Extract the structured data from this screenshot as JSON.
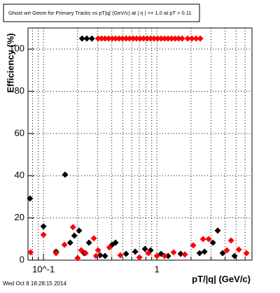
{
  "chart_data": {
    "type": "scatter",
    "title": "Ghost wrt Geom for Primary Tracks vs pT|q| (GeV/c) at | η | <= 1.0 at pT > 0.11",
    "x_label": "pT/|q| (GeV/c)",
    "y_label": "Efficiency (%)",
    "footer": "Wed Oct  8 18:28:15 2014",
    "x_log": true,
    "grid": true,
    "xlim": [
      0.073,
      6.9
    ],
    "ylim": [
      0,
      110
    ],
    "xticks": [
      {
        "value": 0.1,
        "label": "10^-1"
      },
      1
    ],
    "x_minor_ticks": [
      0.08,
      0.09,
      0.2,
      0.3,
      0.4,
      0.5,
      0.6,
      0.7,
      0.8,
      0.9,
      2,
      3,
      4,
      5,
      6
    ],
    "yticks": [
      0,
      20,
      40,
      60,
      80,
      100
    ],
    "series": [
      {
        "color": "#000000",
        "x": [
          0.219,
          0.241,
          0.267,
          0.076,
          0.1,
          0.129,
          0.155,
          0.172,
          0.187,
          0.206,
          0.228,
          0.252,
          0.316,
          0.349,
          0.403,
          0.432,
          0.535,
          0.644,
          0.785,
          0.88,
          1.089,
          1.255,
          1.621,
          2.38,
          2.63,
          3.12,
          3.44,
          3.8,
          4.84
        ],
        "values": [
          105,
          105,
          105,
          29.2,
          16,
          4,
          40.5,
          8.3,
          11.6,
          14,
          3.3,
          8.3,
          2.3,
          2,
          7.3,
          8.3,
          3,
          4,
          5.3,
          4.7,
          3,
          2,
          3,
          3.3,
          4,
          8.3,
          14,
          3.3,
          2
        ]
      },
      {
        "color": "#ff0000",
        "x": [
          0.303,
          0.325,
          0.349,
          0.375,
          0.403,
          0.432,
          0.464,
          0.498,
          0.535,
          0.574,
          0.617,
          0.662,
          0.711,
          0.763,
          0.82,
          0.88,
          0.945,
          1.014,
          1.089,
          1.169,
          1.255,
          1.348,
          1.447,
          1.553,
          1.668,
          1.869,
          2.035,
          2.217,
          2.414,
          0.077,
          0.1,
          0.129,
          0.153,
          0.182,
          0.2,
          0.215,
          0.235,
          0.278,
          0.291,
          0.303,
          0.381,
          0.477,
          0.701,
          0.843,
          1.0,
          1.169,
          1.406,
          1.765,
          2.094,
          2.555,
          2.86,
          4.14,
          4.51,
          5.28,
          6.17
        ],
        "values": [
          105,
          105,
          105,
          105,
          105,
          105,
          105,
          105,
          105,
          105,
          105,
          105,
          105,
          105,
          105,
          105,
          105,
          105,
          105,
          105,
          105,
          105,
          105,
          105,
          105,
          105,
          105,
          105,
          105,
          3.7,
          12,
          3.3,
          7.3,
          15.6,
          1,
          4.7,
          3.3,
          10.3,
          2,
          4.7,
          6,
          2.3,
          1.3,
          3.3,
          2,
          2,
          3.7,
          2.7,
          7,
          10,
          10,
          4.7,
          9.3,
          5,
          3.3
        ]
      }
    ]
  }
}
